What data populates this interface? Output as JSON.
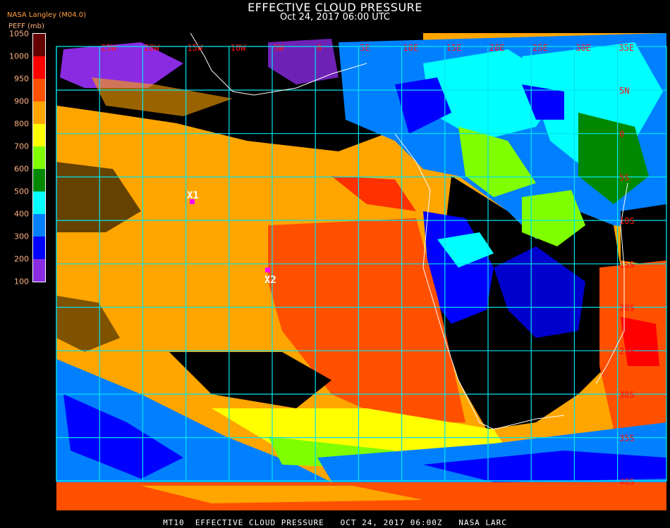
{
  "header": {
    "title": "EFFECTIVE CLOUD PRESSURE",
    "subtitle": "Oct 24, 2017 06:00 UTC",
    "source": "NASA Langley (M04.0)"
  },
  "legend": {
    "label": "PEFF (mb)",
    "ticks": [
      "100",
      "200",
      "300",
      "400",
      "500",
      "600",
      "700",
      "800",
      "900",
      "950",
      "1000",
      "1050"
    ],
    "colors": [
      "#8a2be2",
      "#0000ff",
      "#0080ff",
      "#00ffff",
      "#008800",
      "#80ff00",
      "#ffff00",
      "#ffa500",
      "#ff5000",
      "#ff0000",
      "#640000"
    ]
  },
  "map": {
    "longitude_labels": [
      "25W",
      "20W",
      "15W",
      "10W",
      "5W",
      "0",
      "5E",
      "10E",
      "15E",
      "20E",
      "25E",
      "30E",
      "35E"
    ],
    "latitude_labels": [
      "5N",
      "0",
      "5S",
      "10S",
      "15S",
      "20S",
      "25S",
      "30S",
      "35S",
      "40S"
    ],
    "grid_color": "#00e5ee",
    "markers": [
      {
        "label": "X1",
        "color": "#ff00ff"
      },
      {
        "label": "X2",
        "color": "#ff00ff"
      }
    ]
  },
  "footer": "MT10  EFFECTIVE CLOUD PRESSURE   OCT 24, 2017 06:00Z   NASA LARC"
}
